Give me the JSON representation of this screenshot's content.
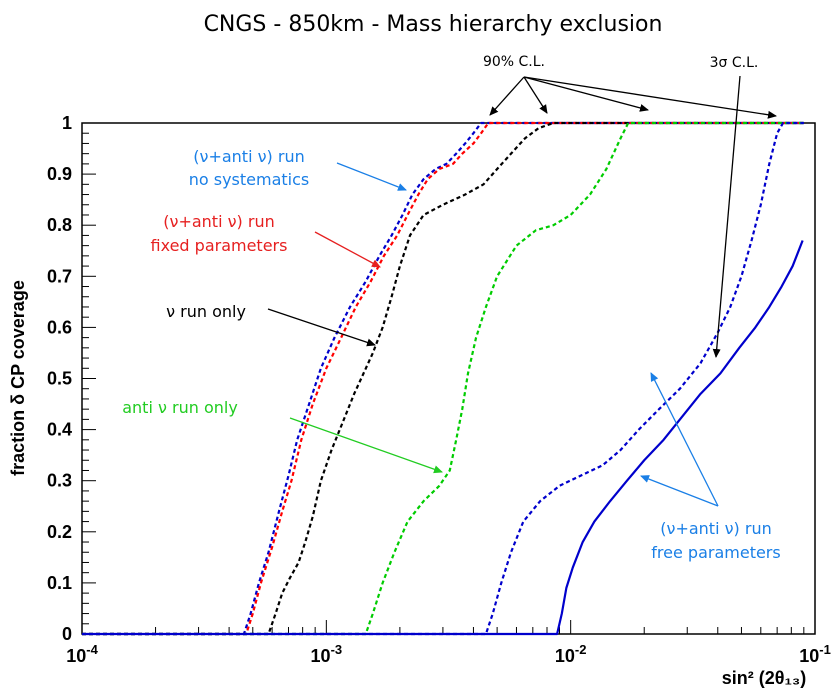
{
  "chart_data": {
    "type": "line",
    "title": "CNGS - 850km - Mass hierarchy exclusion",
    "xlabel": "sin² (2θ₁₃)",
    "ylabel": "fraction δ CP coverage",
    "xscale": "log",
    "xlim": [
      0.0001,
      0.1
    ],
    "ylim": [
      0,
      1
    ],
    "xticks": [
      {
        "value": 0.0001,
        "base": "10",
        "exp": "-4"
      },
      {
        "value": 0.001,
        "base": "10",
        "exp": "-3"
      },
      {
        "value": 0.01,
        "base": "10",
        "exp": "-2"
      },
      {
        "value": 0.1,
        "base": "10",
        "exp": "-1"
      }
    ],
    "yticks": [
      "0",
      "0.1",
      "0.2",
      "0.3",
      "0.4",
      "0.5",
      "0.6",
      "0.7",
      "0.8",
      "0.9",
      "1"
    ],
    "grid": false,
    "series": [
      {
        "color": "#0000cc",
        "style": "dashed",
        "points": [
          [
            0.0001,
            0
          ],
          [
            0.00046,
            0
          ],
          [
            0.00049,
            0.04
          ],
          [
            0.00053,
            0.1
          ],
          [
            0.00058,
            0.16
          ],
          [
            0.00064,
            0.24
          ],
          [
            0.0007,
            0.31
          ],
          [
            0.00076,
            0.38
          ],
          [
            0.00085,
            0.45
          ],
          [
            0.00095,
            0.52
          ],
          [
            0.00108,
            0.58
          ],
          [
            0.00125,
            0.64
          ],
          [
            0.00145,
            0.69
          ],
          [
            0.00165,
            0.74
          ],
          [
            0.00185,
            0.78
          ],
          [
            0.00205,
            0.82
          ],
          [
            0.00225,
            0.86
          ],
          [
            0.0025,
            0.89
          ],
          [
            0.0028,
            0.91
          ],
          [
            0.0031,
            0.92
          ],
          [
            0.0034,
            0.94
          ],
          [
            0.0037,
            0.96
          ],
          [
            0.004,
            0.98
          ],
          [
            0.0043,
            1
          ],
          [
            0.09,
            1
          ]
        ]
      },
      {
        "color": "#ff0000",
        "style": "dashed",
        "points": [
          [
            0.0001,
            0
          ],
          [
            0.00047,
            0
          ],
          [
            0.0005,
            0.04
          ],
          [
            0.00054,
            0.1
          ],
          [
            0.0006,
            0.17
          ],
          [
            0.00066,
            0.24
          ],
          [
            0.00072,
            0.3
          ],
          [
            0.00079,
            0.38
          ],
          [
            0.00088,
            0.45
          ],
          [
            0.001,
            0.52
          ],
          [
            0.00115,
            0.58
          ],
          [
            0.00132,
            0.64
          ],
          [
            0.00152,
            0.69
          ],
          [
            0.00172,
            0.74
          ],
          [
            0.00195,
            0.78
          ],
          [
            0.00215,
            0.82
          ],
          [
            0.00238,
            0.86
          ],
          [
            0.0026,
            0.89
          ],
          [
            0.0029,
            0.91
          ],
          [
            0.0033,
            0.92
          ],
          [
            0.0036,
            0.94
          ],
          [
            0.004,
            0.96
          ],
          [
            0.0043,
            0.98
          ],
          [
            0.0046,
            1
          ],
          [
            0.09,
            1
          ]
        ]
      },
      {
        "color": "#000000",
        "style": "dashed",
        "points": [
          [
            0.0001,
            0
          ],
          [
            0.00058,
            0
          ],
          [
            0.00062,
            0.04
          ],
          [
            0.00066,
            0.08
          ],
          [
            0.00071,
            0.11
          ],
          [
            0.00077,
            0.14
          ],
          [
            0.00082,
            0.18
          ],
          [
            0.00088,
            0.23
          ],
          [
            0.00095,
            0.3
          ],
          [
            0.00105,
            0.36
          ],
          [
            0.00118,
            0.42
          ],
          [
            0.0013,
            0.47
          ],
          [
            0.00142,
            0.51
          ],
          [
            0.00155,
            0.55
          ],
          [
            0.0017,
            0.6
          ],
          [
            0.00185,
            0.66
          ],
          [
            0.002,
            0.72
          ],
          [
            0.0022,
            0.78
          ],
          [
            0.0025,
            0.82
          ],
          [
            0.003,
            0.84
          ],
          [
            0.0037,
            0.86
          ],
          [
            0.0044,
            0.88
          ],
          [
            0.005,
            0.91
          ],
          [
            0.0057,
            0.94
          ],
          [
            0.0065,
            0.97
          ],
          [
            0.0074,
            0.99
          ],
          [
            0.0085,
            1
          ],
          [
            0.09,
            1
          ]
        ]
      },
      {
        "color": "#00cc00",
        "style": "dashed",
        "points": [
          [
            0.0001,
            0
          ],
          [
            0.00145,
            0
          ],
          [
            0.00155,
            0.04
          ],
          [
            0.0017,
            0.1
          ],
          [
            0.0019,
            0.16
          ],
          [
            0.00215,
            0.22
          ],
          [
            0.0025,
            0.26
          ],
          [
            0.0029,
            0.29
          ],
          [
            0.0032,
            0.32
          ],
          [
            0.0034,
            0.38
          ],
          [
            0.0036,
            0.44
          ],
          [
            0.0038,
            0.51
          ],
          [
            0.0041,
            0.58
          ],
          [
            0.0045,
            0.64
          ],
          [
            0.005,
            0.7
          ],
          [
            0.006,
            0.76
          ],
          [
            0.0072,
            0.79
          ],
          [
            0.0085,
            0.8
          ],
          [
            0.01,
            0.82
          ],
          [
            0.012,
            0.86
          ],
          [
            0.014,
            0.91
          ],
          [
            0.016,
            0.97
          ],
          [
            0.0172,
            1
          ],
          [
            0.09,
            1
          ]
        ]
      },
      {
        "color": "#0000cc",
        "style": "dashed",
        "points": [
          [
            0.0001,
            0
          ],
          [
            0.0045,
            0
          ],
          [
            0.0048,
            0.04
          ],
          [
            0.0052,
            0.1
          ],
          [
            0.0057,
            0.16
          ],
          [
            0.0064,
            0.22
          ],
          [
            0.0075,
            0.26
          ],
          [
            0.009,
            0.29
          ],
          [
            0.011,
            0.31
          ],
          [
            0.0135,
            0.33
          ],
          [
            0.016,
            0.36
          ],
          [
            0.019,
            0.4
          ],
          [
            0.023,
            0.44
          ],
          [
            0.028,
            0.48
          ],
          [
            0.034,
            0.53
          ],
          [
            0.04,
            0.59
          ],
          [
            0.045,
            0.64
          ],
          [
            0.05,
            0.7
          ],
          [
            0.055,
            0.77
          ],
          [
            0.06,
            0.84
          ],
          [
            0.065,
            0.92
          ],
          [
            0.07,
            0.98
          ],
          [
            0.074,
            1
          ],
          [
            0.09,
            1
          ]
        ]
      },
      {
        "color": "#0000cc",
        "style": "solid",
        "points": [
          [
            0.0001,
            0
          ],
          [
            0.0088,
            0
          ],
          [
            0.0092,
            0.04
          ],
          [
            0.0096,
            0.09
          ],
          [
            0.0102,
            0.13
          ],
          [
            0.0112,
            0.18
          ],
          [
            0.0125,
            0.22
          ],
          [
            0.0145,
            0.26
          ],
          [
            0.017,
            0.3
          ],
          [
            0.02,
            0.34
          ],
          [
            0.024,
            0.38
          ],
          [
            0.028,
            0.42
          ],
          [
            0.034,
            0.47
          ],
          [
            0.041,
            0.51
          ],
          [
            0.049,
            0.56
          ],
          [
            0.057,
            0.6
          ],
          [
            0.065,
            0.64
          ],
          [
            0.073,
            0.68
          ],
          [
            0.081,
            0.72
          ],
          [
            0.089,
            0.77
          ]
        ]
      }
    ]
  },
  "annotations": {
    "cl90": "90% C.L.",
    "cl3sigma": "3σ C.L.",
    "nu_anti_noSys_l1": "(ν+anti ν) run",
    "nu_anti_noSys_l2": "no systematics",
    "nu_anti_fixed_l1": "(ν+anti ν) run",
    "nu_anti_fixed_l2": "fixed parameters",
    "nu_only": "ν run only",
    "anti_nu_only": "anti ν run only",
    "nu_anti_free_l1": "(ν+anti ν) run",
    "nu_anti_free_l2": "free parameters"
  },
  "colors": {
    "blue_text": "#1a7fe6",
    "red_text": "#e62020",
    "green_text": "#22cc22",
    "black": "#000000"
  }
}
